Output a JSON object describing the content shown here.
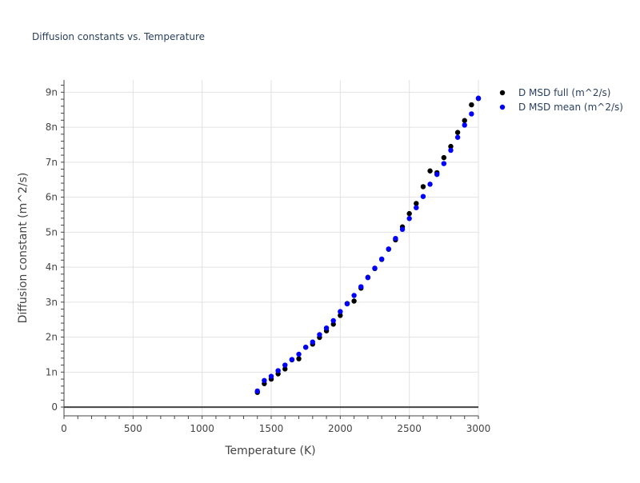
{
  "chart_data": {
    "type": "scatter",
    "title": "Diffusion constants vs. Temperature",
    "xlabel": "Temperature (K)",
    "ylabel": "Diffusion constant (m^2/s)",
    "xlim": [
      0,
      3000
    ],
    "ylim": [
      -0.25,
      9.35
    ],
    "xticks": [
      0,
      500,
      1000,
      1500,
      2000,
      2500,
      3000
    ],
    "xtick_labels": [
      "0",
      "500",
      "1000",
      "1500",
      "2000",
      "2500",
      "3000"
    ],
    "yticks": [
      0,
      1,
      2,
      3,
      4,
      5,
      6,
      7,
      8,
      9
    ],
    "ytick_labels": [
      "0",
      "1n",
      "2n",
      "3n",
      "4n",
      "5n",
      "6n",
      "7n",
      "8n",
      "9n"
    ],
    "grid": true,
    "legend_position": "top-right outside",
    "series": [
      {
        "name": "D MSD full (m^2/s)",
        "color": "#000000",
        "x": [
          1400,
          1450,
          1500,
          1550,
          1600,
          1650,
          1700,
          1750,
          1800,
          1850,
          1900,
          1950,
          2000,
          2050,
          2100,
          2150,
          2200,
          2250,
          2300,
          2350,
          2400,
          2450,
          2500,
          2550,
          2600,
          2650,
          2700,
          2750,
          2800,
          2850,
          2900,
          2950,
          3000
        ],
        "y": [
          0.42,
          0.67,
          0.8,
          0.95,
          1.09,
          1.35,
          1.38,
          1.71,
          1.8,
          1.99,
          2.18,
          2.37,
          2.62,
          2.96,
          3.03,
          3.4,
          3.71,
          3.96,
          4.22,
          4.51,
          4.78,
          5.15,
          5.53,
          5.82,
          6.3,
          6.75,
          6.7,
          7.13,
          7.45,
          7.85,
          8.19,
          8.64,
          8.82
        ]
      },
      {
        "name": "D MSD mean (m^2/s)",
        "color": "#0000ff",
        "x": [
          1400,
          1450,
          1500,
          1550,
          1600,
          1650,
          1700,
          1750,
          1800,
          1850,
          1900,
          1950,
          2000,
          2050,
          2100,
          2150,
          2200,
          2250,
          2300,
          2350,
          2400,
          2450,
          2500,
          2550,
          2600,
          2650,
          2700,
          2750,
          2800,
          2850,
          2900,
          2950,
          3000
        ],
        "y": [
          0.46,
          0.76,
          0.88,
          1.04,
          1.2,
          1.36,
          1.51,
          1.71,
          1.86,
          2.07,
          2.26,
          2.47,
          2.73,
          2.95,
          3.19,
          3.44,
          3.7,
          3.97,
          4.23,
          4.52,
          4.82,
          5.08,
          5.39,
          5.7,
          6.02,
          6.37,
          6.65,
          6.96,
          7.34,
          7.71,
          8.06,
          8.38,
          8.83
        ]
      }
    ]
  }
}
